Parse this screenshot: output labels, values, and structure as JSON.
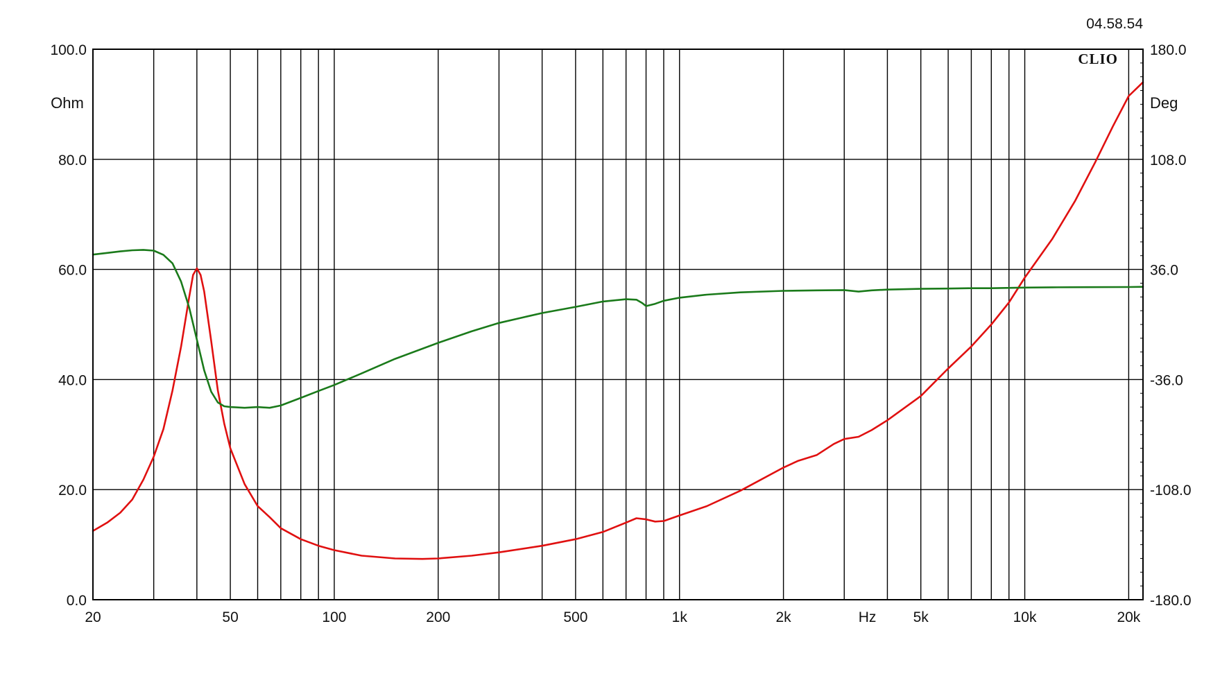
{
  "timestamp": "04.58.54",
  "brand": "CLIO",
  "chart_data": {
    "type": "line",
    "x_scale": "log",
    "xlim": [
      20,
      22000
    ],
    "ylim_left": [
      0,
      100
    ],
    "ylim_right": [
      -180,
      180
    ],
    "left_unit": "Ohm",
    "right_unit": "Deg",
    "x_unit": "Hz",
    "left_ticks": [
      {
        "value": 0,
        "label": "0.0"
      },
      {
        "value": 20,
        "label": "20.0"
      },
      {
        "value": 40,
        "label": "40.0"
      },
      {
        "value": 60,
        "label": "60.0"
      },
      {
        "value": 80,
        "label": "80.0"
      },
      {
        "value": 100,
        "label": "100.0"
      }
    ],
    "right_ticks": [
      {
        "value": -180,
        "label": "-180.0"
      },
      {
        "value": -108,
        "label": "-108.0"
      },
      {
        "value": -36,
        "label": "-36.0"
      },
      {
        "value": 36,
        "label": "36.0"
      },
      {
        "value": 108,
        "label": "108.0"
      },
      {
        "value": 180,
        "label": "180.0"
      }
    ],
    "x_labels": [
      {
        "value": 20,
        "label": "20"
      },
      {
        "value": 50,
        "label": "50"
      },
      {
        "value": 100,
        "label": "100"
      },
      {
        "value": 200,
        "label": "200"
      },
      {
        "value": 500,
        "label": "500"
      },
      {
        "value": 1000,
        "label": "1k"
      },
      {
        "value": 2000,
        "label": "2k"
      },
      {
        "value": 5000,
        "label": "5k"
      },
      {
        "value": 10000,
        "label": "10k"
      },
      {
        "value": 20000,
        "label": "20k"
      }
    ],
    "x_gridlines": [
      30,
      40,
      50,
      60,
      70,
      80,
      90,
      100,
      200,
      300,
      400,
      500,
      600,
      700,
      800,
      900,
      1000,
      2000,
      3000,
      4000,
      5000,
      6000,
      7000,
      8000,
      9000,
      10000,
      20000
    ],
    "grid": true,
    "series": [
      {
        "axis": "left",
        "color": "#e01010",
        "points": [
          [
            20,
            12.5
          ],
          [
            22,
            14.0
          ],
          [
            24,
            15.8
          ],
          [
            26,
            18.2
          ],
          [
            28,
            21.8
          ],
          [
            30,
            26.0
          ],
          [
            32,
            31.0
          ],
          [
            34,
            38.0
          ],
          [
            36,
            46.0
          ],
          [
            38,
            55.0
          ],
          [
            39,
            59.0
          ],
          [
            40,
            60.2
          ],
          [
            41,
            59.0
          ],
          [
            42,
            56.0
          ],
          [
            44,
            47.0
          ],
          [
            46,
            38.0
          ],
          [
            48,
            32.0
          ],
          [
            50,
            27.5
          ],
          [
            55,
            21.0
          ],
          [
            60,
            17.0
          ],
          [
            65,
            15.0
          ],
          [
            70,
            13.0
          ],
          [
            80,
            11.0
          ],
          [
            90,
            9.8
          ],
          [
            100,
            9.0
          ],
          [
            120,
            8.0
          ],
          [
            150,
            7.5
          ],
          [
            180,
            7.4
          ],
          [
            200,
            7.5
          ],
          [
            250,
            8.0
          ],
          [
            300,
            8.6
          ],
          [
            400,
            9.8
          ],
          [
            500,
            11.0
          ],
          [
            600,
            12.3
          ],
          [
            700,
            14.0
          ],
          [
            750,
            14.8
          ],
          [
            800,
            14.6
          ],
          [
            850,
            14.2
          ],
          [
            900,
            14.3
          ],
          [
            1000,
            15.3
          ],
          [
            1200,
            17.0
          ],
          [
            1500,
            19.8
          ],
          [
            2000,
            24.0
          ],
          [
            2200,
            25.2
          ],
          [
            2500,
            26.3
          ],
          [
            2800,
            28.3
          ],
          [
            3000,
            29.2
          ],
          [
            3300,
            29.6
          ],
          [
            3600,
            30.8
          ],
          [
            4000,
            32.6
          ],
          [
            5000,
            37.0
          ],
          [
            6000,
            42.0
          ],
          [
            7000,
            46.0
          ],
          [
            8000,
            50.0
          ],
          [
            9000,
            54.0
          ],
          [
            10000,
            58.5
          ],
          [
            12000,
            65.5
          ],
          [
            14000,
            72.5
          ],
          [
            16000,
            79.5
          ],
          [
            18000,
            86.0
          ],
          [
            20000,
            91.5
          ],
          [
            22000,
            94.0
          ]
        ]
      },
      {
        "axis": "right",
        "color": "#1a7a1a",
        "points": [
          [
            20,
            45.7
          ],
          [
            22,
            46.8
          ],
          [
            24,
            47.8
          ],
          [
            26,
            48.5
          ],
          [
            28,
            48.8
          ],
          [
            30,
            48.3
          ],
          [
            32,
            45.5
          ],
          [
            34,
            40.0
          ],
          [
            36,
            28.0
          ],
          [
            38,
            11.0
          ],
          [
            40,
            -10.0
          ],
          [
            42,
            -30.0
          ],
          [
            44,
            -44.0
          ],
          [
            46,
            -51.0
          ],
          [
            48,
            -53.5
          ],
          [
            50,
            -54.0
          ],
          [
            55,
            -54.5
          ],
          [
            60,
            -54.0
          ],
          [
            65,
            -54.5
          ],
          [
            70,
            -53.0
          ],
          [
            80,
            -48.0
          ],
          [
            90,
            -43.5
          ],
          [
            100,
            -39.6
          ],
          [
            120,
            -32.0
          ],
          [
            150,
            -22.5
          ],
          [
            200,
            -12.0
          ],
          [
            250,
            -4.5
          ],
          [
            300,
            1.0
          ],
          [
            350,
            4.5
          ],
          [
            400,
            7.5
          ],
          [
            500,
            11.5
          ],
          [
            600,
            15.0
          ],
          [
            700,
            16.5
          ],
          [
            750,
            16.2
          ],
          [
            780,
            14.0
          ],
          [
            800,
            12.0
          ],
          [
            850,
            13.5
          ],
          [
            900,
            15.5
          ],
          [
            1000,
            17.5
          ],
          [
            1200,
            19.5
          ],
          [
            1500,
            21.0
          ],
          [
            2000,
            22.0
          ],
          [
            2500,
            22.3
          ],
          [
            3000,
            22.5
          ],
          [
            3300,
            21.5
          ],
          [
            3600,
            22.3
          ],
          [
            4000,
            22.8
          ],
          [
            5000,
            23.3
          ],
          [
            6000,
            23.5
          ],
          [
            7000,
            23.7
          ],
          [
            8000,
            23.7
          ],
          [
            10000,
            24.1
          ],
          [
            12000,
            24.3
          ],
          [
            15000,
            24.4
          ],
          [
            20000,
            24.5
          ],
          [
            22000,
            24.6
          ]
        ]
      }
    ]
  }
}
